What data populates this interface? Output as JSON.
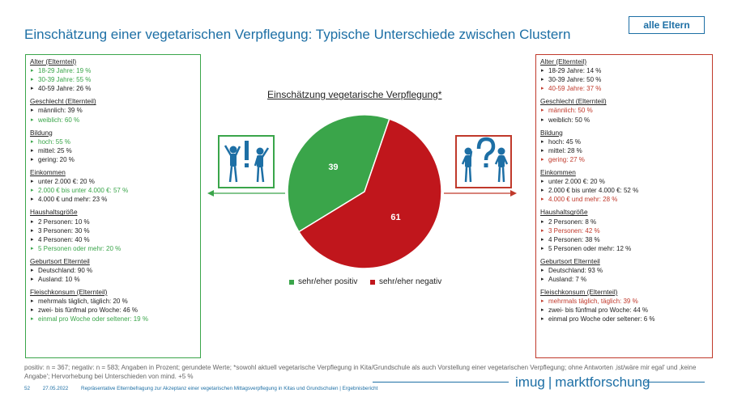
{
  "header": {
    "title": "Einschätzung einer vegetarischen Verpflegung: Typische Unterschiede zwischen Clustern",
    "badge": "alle Eltern"
  },
  "left_panel": {
    "sections": [
      {
        "title": "Alter (Elternteil)",
        "items": [
          {
            "text": "18-29 Jahre: 19 %",
            "hl": true
          },
          {
            "text": "30-39 Jahre: 55 %",
            "hl": true
          },
          {
            "text": "40-59 Jahre: 26 %",
            "hl": false
          }
        ]
      },
      {
        "title": "Geschlecht (Elternteil)",
        "items": [
          {
            "text": "männlich: 39 %",
            "hl": false
          },
          {
            "text": "weiblich: 60 %",
            "hl": true
          }
        ]
      },
      {
        "title": "Bildung",
        "items": [
          {
            "text": "hoch: 55 %",
            "hl": true
          },
          {
            "text": "mittel: 25 %",
            "hl": false
          },
          {
            "text": "gering: 20 %",
            "hl": false
          }
        ]
      },
      {
        "title": "Einkommen",
        "items": [
          {
            "text": "unter 2.000 €: 20 %",
            "hl": false
          },
          {
            "text": "2.000 € bis unter 4.000 €: 57 %",
            "hl": true
          },
          {
            "text": "4.000 € und mehr: 23 %",
            "hl": false
          }
        ]
      },
      {
        "title": "Haushaltsgröße",
        "items": [
          {
            "text": "2 Personen: 10 %",
            "hl": false
          },
          {
            "text": "3 Personen: 30 %",
            "hl": false
          },
          {
            "text": "4 Personen: 40 %",
            "hl": false
          },
          {
            "text": "5 Personen oder mehr: 20 %",
            "hl": true
          }
        ]
      },
      {
        "title": "Geburtsort Elternteil",
        "items": [
          {
            "text": "Deutschland: 90 %",
            "hl": false
          },
          {
            "text": "Ausland: 10 %",
            "hl": false
          }
        ]
      },
      {
        "title": "Fleischkonsum (Elternteil)",
        "items": [
          {
            "text": "mehrmals täglich, täglich: 20 %",
            "hl": false
          },
          {
            "text": "zwei- bis fünfmal pro Woche: 46 %",
            "hl": false
          },
          {
            "text": "einmal pro Woche oder seltener: 19 %",
            "hl": true
          }
        ]
      }
    ]
  },
  "right_panel": {
    "sections": [
      {
        "title": "Alter (Elternteil)",
        "items": [
          {
            "text": "18-29 Jahre: 14 %",
            "hl": false
          },
          {
            "text": "30-39 Jahre: 50 %",
            "hl": false
          },
          {
            "text": "40-59 Jahre: 37 %",
            "hl": true
          }
        ]
      },
      {
        "title": "Geschlecht (Elternteil)",
        "items": [
          {
            "text": "männlich: 50 %",
            "hl": true
          },
          {
            "text": "weiblich: 50 %",
            "hl": false
          }
        ]
      },
      {
        "title": "Bildung",
        "items": [
          {
            "text": "hoch: 45 %",
            "hl": false
          },
          {
            "text": "mittel: 28 %",
            "hl": false
          },
          {
            "text": "gering: 27 %",
            "hl": true
          }
        ]
      },
      {
        "title": "Einkommen",
        "items": [
          {
            "text": "unter 2.000 €: 20 %",
            "hl": false
          },
          {
            "text": "2.000 € bis unter 4.000 €: 52 %",
            "hl": false
          },
          {
            "text": "4.000 € und mehr: 28 %",
            "hl": true
          }
        ]
      },
      {
        "title": "Haushaltsgröße",
        "items": [
          {
            "text": "2 Personen: 8 %",
            "hl": false
          },
          {
            "text": "3 Personen: 42 %",
            "hl": true
          },
          {
            "text": "4 Personen: 38 %",
            "hl": false
          },
          {
            "text": "5 Personen oder mehr: 12 %",
            "hl": false
          }
        ]
      },
      {
        "title": "Geburtsort Elternteil",
        "items": [
          {
            "text": "Deutschland: 93 %",
            "hl": false
          },
          {
            "text": "Ausland: 7 %",
            "hl": false
          }
        ]
      },
      {
        "title": "Fleischkonsum (Elternteil)",
        "items": [
          {
            "text": "mehrmals täglich, täglich: 39 %",
            "hl": true
          },
          {
            "text": "zwei- bis fünfmal pro Woche: 44 %",
            "hl": false
          },
          {
            "text": "einmal pro Woche oder seltener: 6 %",
            "hl": false
          }
        ]
      }
    ]
  },
  "chart_data": {
    "type": "pie",
    "title": "Einschätzung vegetarische Verpflegung*",
    "categories": [
      "sehr/eher positiv",
      "sehr/eher negativ"
    ],
    "values": [
      39,
      61
    ],
    "colors": [
      "#3aa54a",
      "#c0161c"
    ],
    "legend": "bottom"
  },
  "icons": {
    "left": "people-exclamation-icon",
    "right": "people-question-icon",
    "left_color": "#3aa54a",
    "right_color": "#c0392b",
    "figure_color": "#1d6fa5"
  },
  "note": "positiv: n = 367; negativ: n = 583; Angaben in Prozent; gerundete Werte; *sowohl aktuell vegetarische Verpflegung in Kita/Grundschule als auch Vorstellung einer vegetarischen Verpflegung; ohne Antworten ‚ist/wäre mir egal' und ‚keine Angabe'; Hervorhebung bei Unterschieden von mind. +5 %",
  "footer": {
    "page": "52",
    "date": "27.05.2022",
    "text": "Repräsentative Elternbefragung zur Akzeptanz einer vegetarischen Mittagsverpflegung in Kitas und Grundschulen | Ergebnisbericht"
  },
  "logo": {
    "brand": "imug",
    "sep": "|",
    "sub": "marktforschung"
  }
}
